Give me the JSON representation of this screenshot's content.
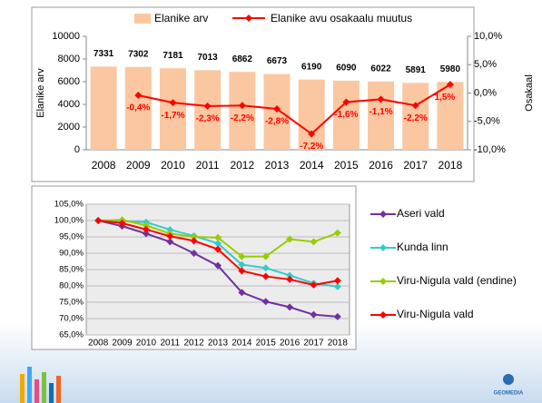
{
  "chart_data": [
    {
      "type": "bar",
      "categories": [
        "2008",
        "2009",
        "2010",
        "2011",
        "2012",
        "2013",
        "2014",
        "2015",
        "2016",
        "2017",
        "2018"
      ],
      "series": [
        {
          "name": "Elanike arv",
          "type": "bar",
          "color": "#fbc7a0",
          "values": [
            7331,
            7302,
            7181,
            7013,
            6862,
            6673,
            6190,
            6090,
            6022,
            5891,
            5980
          ]
        },
        {
          "name": "Elanike avu osakaalu muutus",
          "type": "line",
          "axis": "y2",
          "color": "#ff0000",
          "values": [
            null,
            -0.4,
            -1.7,
            -2.3,
            -2.2,
            -2.8,
            -7.2,
            -1.6,
            -1.1,
            -2.2,
            1.5
          ],
          "value_labels": [
            null,
            "-0,4%",
            "-1,7%",
            "-2,3%",
            "-2,2%",
            "-2,8%",
            "-7,2%",
            "-1,6%",
            "-1,1%",
            "-2,2%",
            "1,5%"
          ]
        }
      ],
      "ylabel": "Elanike arv",
      "y2label": "Osakaal",
      "ylim": [
        0,
        10000
      ],
      "yticks": [
        0,
        2000,
        4000,
        6000,
        8000,
        10000
      ],
      "y2lim": [
        -10,
        10
      ],
      "y2ticks": [
        {
          "value": -10,
          "label": "-10,0%"
        },
        {
          "value": -5,
          "label": "-5,0%"
        },
        {
          "value": 0,
          "label": "0,0%"
        },
        {
          "value": 5,
          "label": "5,0%"
        },
        {
          "value": 10,
          "label": "10,0%"
        }
      ],
      "legend": "top"
    },
    {
      "type": "line",
      "categories": [
        "2008",
        "2009",
        "2010",
        "2011",
        "2012",
        "2013",
        "2014",
        "2015",
        "2016",
        "2017",
        "2018"
      ],
      "series": [
        {
          "name": "Aseri vald",
          "color": "#7030a0",
          "values": [
            100,
            98.3,
            96,
            93.5,
            90,
            86.2,
            78,
            75.2,
            73.5,
            71.2,
            70.6
          ]
        },
        {
          "name": "Kunda linn",
          "color": "#33cccc",
          "values": [
            100,
            99.8,
            99.5,
            97.2,
            95.3,
            93,
            86.5,
            85.5,
            83.2,
            80.8,
            79.8
          ]
        },
        {
          "name": "Viru-Nigula vald (endine)",
          "color": "#99cc00",
          "values": [
            100,
            100.2,
            98.5,
            96,
            95,
            94.8,
            89,
            89,
            94.3,
            93.5,
            96.2
          ]
        },
        {
          "name": "Viru-Nigula vald",
          "color": "#ff0000",
          "values": [
            100,
            99.2,
            97.3,
            95.2,
            93.8,
            91.2,
            84.6,
            82.9,
            82,
            80.3,
            81.6
          ]
        }
      ],
      "ylim": [
        65,
        105
      ],
      "yticks": [
        {
          "value": 65,
          "label": "65,0%"
        },
        {
          "value": 70,
          "label": "70,0%"
        },
        {
          "value": 75,
          "label": "75,0%"
        },
        {
          "value": 80,
          "label": "80,0%"
        },
        {
          "value": 85,
          "label": "85,0%"
        },
        {
          "value": 90,
          "label": "90,0%"
        },
        {
          "value": 95,
          "label": "95,0%"
        },
        {
          "value": 100,
          "label": "100,0%"
        },
        {
          "value": 105,
          "label": "105,0%"
        }
      ],
      "grid": true,
      "legend": "right"
    }
  ],
  "logo": "GEOMEDIA"
}
